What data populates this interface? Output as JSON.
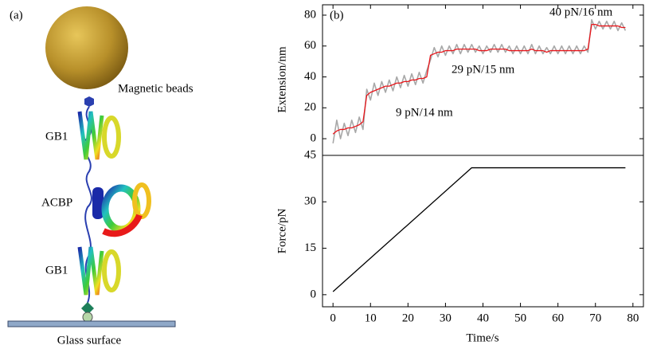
{
  "diagram": {
    "panel_label": "(a)",
    "bead_label": "Magnetic beads",
    "gb1_top": "GB1",
    "acbp": "ACBP",
    "gb1_bottom": "GB1",
    "surface_label": "Glass surface"
  },
  "chart_data": [
    {
      "type": "line",
      "panel_label": "(b)",
      "ylabel": "Extension/nm",
      "annotations": [
        "9 pN/14 nm",
        "29 pN/15 nm",
        "40 pN/16 nm"
      ],
      "x": [
        0,
        1,
        2,
        3,
        4,
        5,
        6,
        7,
        8,
        9,
        10,
        11,
        12,
        13,
        14,
        15,
        16,
        17,
        18,
        19,
        20,
        21,
        22,
        23,
        24,
        25,
        26,
        27,
        28,
        29,
        30,
        31,
        32,
        33,
        34,
        35,
        36,
        37,
        38,
        39,
        40,
        41,
        42,
        43,
        44,
        45,
        46,
        47,
        48,
        49,
        50,
        51,
        52,
        53,
        54,
        55,
        56,
        57,
        58,
        59,
        60,
        61,
        62,
        63,
        64,
        65,
        66,
        67,
        68,
        69,
        70,
        71,
        72,
        73,
        74,
        75,
        76,
        77,
        78
      ],
      "series": [
        {
          "color": "#a8a8a8",
          "values": [
            -3,
            12,
            0,
            10,
            2,
            12,
            4,
            14,
            6,
            32,
            25,
            36,
            28,
            37,
            30,
            38,
            31,
            40,
            33,
            41,
            34,
            42,
            35,
            43,
            36,
            44,
            51,
            59,
            53,
            60,
            54,
            60,
            55,
            61,
            55,
            61,
            56,
            61,
            56,
            60,
            55,
            60,
            56,
            61,
            56,
            61,
            56,
            60,
            55,
            60,
            55,
            60,
            55,
            61,
            55,
            60,
            55,
            59,
            55,
            60,
            55,
            60,
            55,
            60,
            55,
            60,
            55,
            60,
            56,
            77,
            71,
            76,
            71,
            76,
            71,
            76,
            70,
            75,
            70
          ]
        },
        {
          "color": "#e8161b",
          "values": [
            3,
            5,
            6,
            6,
            7,
            7,
            8,
            9,
            11,
            28,
            30,
            31,
            32,
            33,
            34,
            34,
            35,
            36,
            36,
            37,
            37,
            38,
            38,
            39,
            39,
            40,
            54,
            55,
            56,
            56,
            57,
            57,
            57,
            58,
            58,
            58,
            58,
            58,
            58,
            57,
            57,
            57,
            58,
            58,
            58,
            58,
            58,
            57,
            57,
            57,
            57,
            57,
            57,
            58,
            57,
            57,
            57,
            56,
            57,
            57,
            57,
            57,
            57,
            57,
            57,
            57,
            57,
            57,
            58,
            74,
            74,
            73,
            73,
            73,
            73,
            73,
            73,
            72,
            72
          ]
        }
      ],
      "xlim": [
        -2.8,
        82.8
      ],
      "ylim": [
        -10.8,
        86.7
      ],
      "yticks": [
        0,
        20,
        40,
        60,
        80
      ]
    },
    {
      "type": "line",
      "xlabel": "Time/s",
      "ylabel": "Force/pN",
      "x": [
        0,
        37,
        78
      ],
      "series": [
        {
          "color": "#000000",
          "values": [
            1,
            41,
            41
          ]
        }
      ],
      "xlim": [
        -2.8,
        82.8
      ],
      "ylim": [
        -3.9,
        45
      ],
      "xticks": [
        0,
        10,
        20,
        30,
        40,
        50,
        60,
        70,
        80
      ],
      "yticks": [
        0,
        15,
        30,
        45
      ]
    }
  ]
}
